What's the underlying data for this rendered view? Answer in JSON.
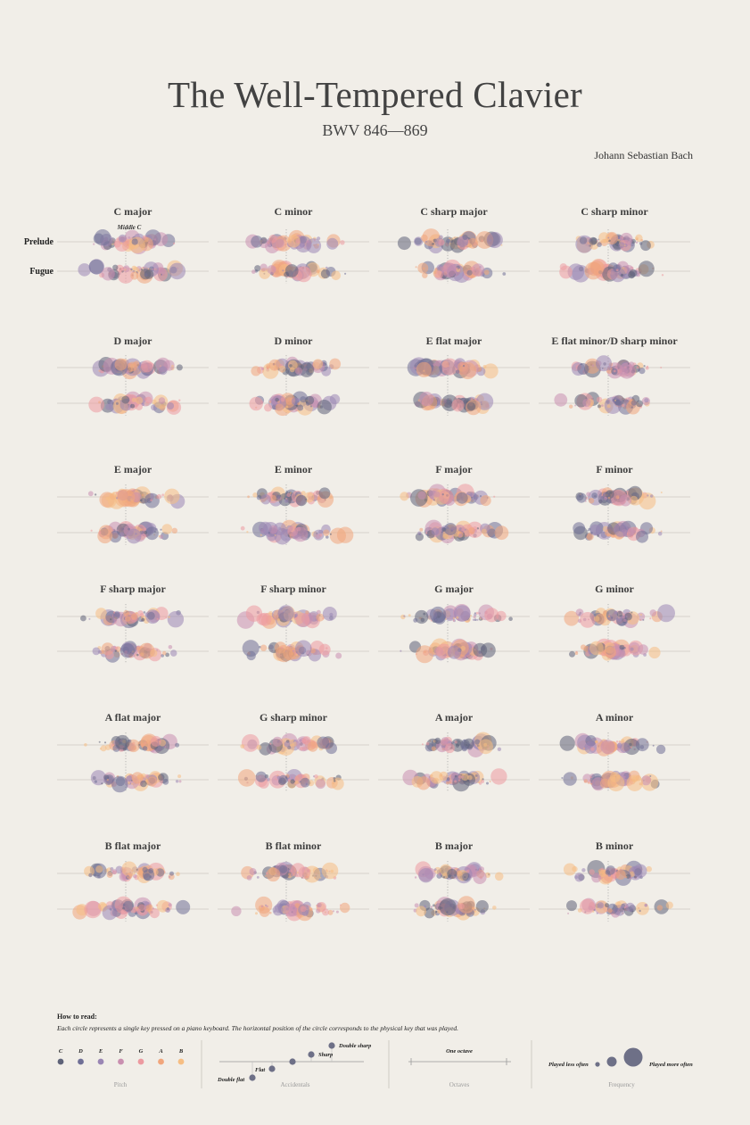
{
  "title": "The Well-Tempered Clavier",
  "subtitle": "BWV 846—869",
  "composer": "Johann Sebastian Bach",
  "chart_data": {
    "type": "scatter",
    "row_labels": [
      "Prelude",
      "Fugue"
    ],
    "annotation": "Middle C",
    "keys": [
      "C major",
      "C minor",
      "C sharp major",
      "C sharp minor",
      "D major",
      "D minor",
      "E flat major",
      "E flat minor/D sharp minor",
      "E major",
      "E minor",
      "F major",
      "F minor",
      "F sharp major",
      "F sharp minor",
      "G major",
      "G minor",
      "A flat major",
      "G sharp minor",
      "A major",
      "A minor",
      "B flat major",
      "B flat minor",
      "B major",
      "B minor"
    ]
  },
  "legend": {
    "heading": "How to read:",
    "description": "Each circle represents a single key pressed on a piano keyboard. The horizontal position of the circle corresponds to the physical key that was played.",
    "pitch": {
      "caption": "Pitch",
      "notes": [
        "C",
        "D",
        "E",
        "F",
        "G",
        "A",
        "B"
      ],
      "colors": [
        "#5e6278",
        "#6f6f96",
        "#9a86b4",
        "#c98fb0",
        "#ec9aa0",
        "#f1a67c",
        "#f6be84"
      ]
    },
    "accidentals": {
      "caption": "Accidentals",
      "labels": [
        "Double sharp",
        "Sharp",
        "Flat",
        "Double flat"
      ]
    },
    "octaves": {
      "caption": "Octaves",
      "label": "One octave"
    },
    "frequency": {
      "caption": "Frequency",
      "less": "Played less often",
      "more": "Played more often"
    }
  }
}
